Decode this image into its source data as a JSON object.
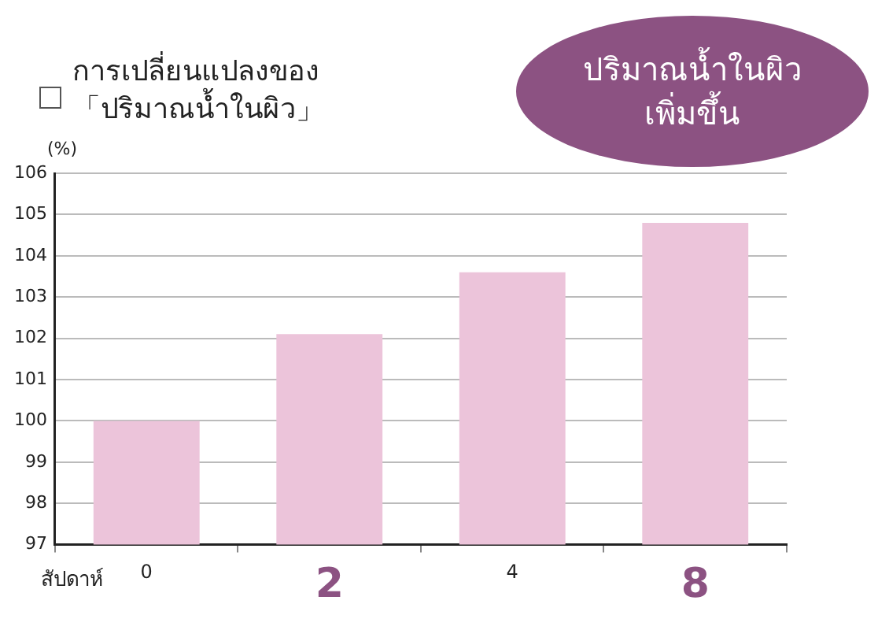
{
  "chart_data": {
    "type": "bar",
    "title": "การเปลี่ยนแปลงของ 「ปริมาณน้ำในผิว」",
    "xlabel": "สัปดาห์",
    "ylabel": "(%)",
    "categories": [
      "0",
      "2",
      "4",
      "8"
    ],
    "values": [
      100,
      102.1,
      103.6,
      104.8
    ],
    "color": "#ecc4da",
    "ylim": [
      97,
      106
    ],
    "yticks": [
      97,
      98,
      99,
      100,
      101,
      102,
      103,
      104,
      105,
      106
    ],
    "grid": "y",
    "annotations": [
      "ปริมาณน้ำในผิว เพิ่มขึ้น"
    ]
  }
}
